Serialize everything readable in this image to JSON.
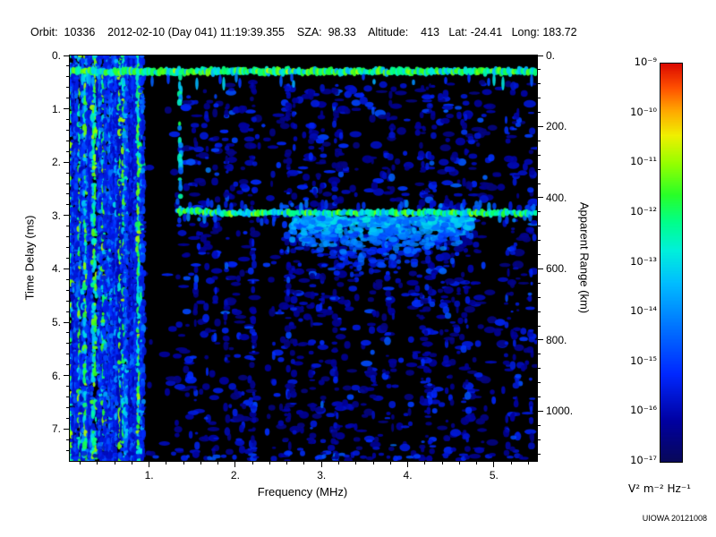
{
  "header": {
    "text": "Orbit:  10336    2012-02-10 (Day 041) 11:19:39.355    SZA:  98.33    Altitude:    413   Lat: -24.41   Long: 183.72",
    "orbit": "10336",
    "date": "2012-02-10",
    "day_of_year": "041",
    "time_utc": "11:19:39.355",
    "sza_deg": "98.33",
    "altitude_km": "413",
    "latitude_deg": "-24.41",
    "longitude_deg": "183.72"
  },
  "credit": "UIOWA 20121008",
  "chart_data": {
    "type": "heatmap",
    "title": "",
    "xlabel": "Frequency (MHz)",
    "ylabel_left": "Time Delay (ms)",
    "ylabel_right": "Apparent Range (km)",
    "x_range_mhz": [
      0.08,
      5.5
    ],
    "y_range_ms": [
      0,
      7.6
    ],
    "right_axis_range_km": [
      0,
      1140
    ],
    "x_ticks": [
      {
        "label": "1.",
        "value": 1
      },
      {
        "label": "2.",
        "value": 2
      },
      {
        "label": "3.",
        "value": 3
      },
      {
        "label": "4.",
        "value": 4
      },
      {
        "label": "5.",
        "value": 5
      }
    ],
    "x_minor": {
      "from": 0.2,
      "to": 5.4,
      "step": 0.2
    },
    "y_ticks": [
      {
        "label": "0.",
        "value": 0
      },
      {
        "label": "1.",
        "value": 1
      },
      {
        "label": "2.",
        "value": 2
      },
      {
        "label": "3.",
        "value": 3
      },
      {
        "label": "4.",
        "value": 4
      },
      {
        "label": "5.",
        "value": 5
      },
      {
        "label": "6.",
        "value": 6
      },
      {
        "label": "7.",
        "value": 7
      }
    ],
    "y_minor": {
      "from": 0.2,
      "to": 7.4,
      "step": 0.2
    },
    "right_ticks": [
      {
        "label": "0.",
        "value": 0
      },
      {
        "label": "200.",
        "value": 200
      },
      {
        "label": "400.",
        "value": 400
      },
      {
        "label": "600.",
        "value": 600
      },
      {
        "label": "800.",
        "value": 800
      },
      {
        "label": "1000.",
        "value": 1000
      }
    ],
    "right_minor": {
      "from": 40,
      "to": 1120,
      "step": 40
    },
    "colorbar": {
      "scale": "log",
      "ticks": [
        "10⁻⁹",
        "10⁻¹⁰",
        "10⁻¹¹",
        "10⁻¹²",
        "10⁻¹³",
        "10⁻¹⁴",
        "10⁻¹⁵",
        "10⁻¹⁶",
        "10⁻¹⁷"
      ],
      "top_value": "1e-9",
      "bottom_value": "1e-17",
      "units": "V² m⁻² Hz⁻¹"
    },
    "colormap_stops": [
      [
        0.0,
        8,
        8,
        90
      ],
      [
        0.1,
        0,
        0,
        160
      ],
      [
        0.22,
        0,
        40,
        255
      ],
      [
        0.33,
        0,
        110,
        255
      ],
      [
        0.45,
        0,
        190,
        255
      ],
      [
        0.53,
        0,
        240,
        220
      ],
      [
        0.6,
        0,
        255,
        140
      ],
      [
        0.67,
        40,
        255,
        40
      ],
      [
        0.75,
        150,
        255,
        0
      ],
      [
        0.82,
        240,
        240,
        0
      ],
      [
        0.88,
        255,
        170,
        0
      ],
      [
        0.94,
        255,
        80,
        0
      ],
      [
        1.0,
        220,
        10,
        0
      ]
    ],
    "features": {
      "seed": 20121008,
      "background_blob_count": 1500,
      "surface_noise_band": {
        "delay_ms": 0.3,
        "freq_span_mhz": [
          0.08,
          5.5
        ]
      },
      "ionospheric_echo_band": {
        "delay_ms": 2.95,
        "freq_span_mhz": [
          1.33,
          5.5
        ]
      },
      "low_freq_noise": {
        "freq_span_mhz": [
          0.08,
          0.93
        ],
        "columns": 66
      },
      "quiet_bands_mhz": [
        [
          0.95,
          1.32
        ],
        [
          2.28,
          2.5
        ]
      ],
      "vertical_marker_mhz": 1.36,
      "diffuse_echo": {
        "freq_span_mhz": [
          2.65,
          4.75
        ],
        "delay_span_ms": [
          3.05,
          4.5
        ],
        "blob_count": 700
      },
      "noise_column_count": 36,
      "bottom_edge_noise": true
    }
  }
}
